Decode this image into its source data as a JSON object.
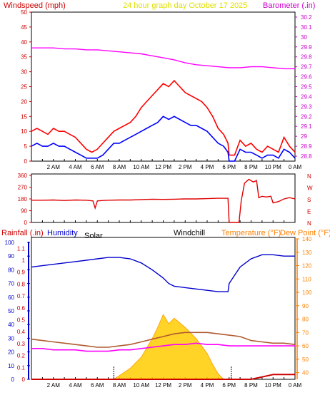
{
  "title": "24 hour graph day   October 17 2025",
  "x_ticks": [
    "2 AM",
    "4 AM",
    "6 AM",
    "8 AM",
    "10 AM",
    "12 PM",
    "2 PM",
    "4 PM",
    "6 PM",
    "8 PM",
    "10 PM",
    "0 AM"
  ],
  "colors": {
    "windspeed": "#ff0000",
    "wind_avg": "#0000ff",
    "barometer": "#ff00ff",
    "wind_dir": "#e00000",
    "humidity": "#0000cc",
    "temperature": "#b05a30",
    "dewpoint": "#ff00ff",
    "solar": "#ffcc00",
    "rain": "#cc0000",
    "title": "#e0e000",
    "left_axis": "#cc0000",
    "right_axis": "#cc00cc",
    "temp_axis": "#ff8000"
  },
  "chart_data": [
    {
      "type": "line",
      "labels": {
        "left": "Windspeed (mph)",
        "right": "Barometer (.in)"
      },
      "left_ticks": [
        "0",
        "5",
        "10",
        "15",
        "20",
        "25",
        "30",
        "35",
        "40",
        "45",
        "50"
      ],
      "right_ticks": [
        "28.8",
        "28.9",
        "29",
        "29.1",
        "29.2",
        "29.3",
        "29.4",
        "29.5",
        "29.6",
        "29.7",
        "29.8",
        "29.9",
        "30",
        "30.1",
        "30.2"
      ],
      "ylim": [
        0,
        50
      ],
      "y2lim": [
        28.75,
        30.25
      ],
      "series": [
        {
          "key": "gust",
          "axis": "left",
          "x": [
            0,
            0.5,
            1,
            1.5,
            2,
            2.5,
            3,
            3.5,
            4,
            4.5,
            5,
            5.5,
            6,
            6.5,
            7,
            7.5,
            8,
            8.5,
            9,
            9.5,
            10,
            10.5,
            11,
            11.5,
            12,
            12.5,
            13,
            13.5,
            14,
            14.5,
            15,
            15.5,
            16,
            16.5,
            17,
            17.5,
            17.9,
            18,
            18.5,
            19,
            19.5,
            20,
            20.5,
            21,
            21.5,
            22,
            22.5,
            23,
            23.5,
            24
          ],
          "y": [
            10,
            11,
            10,
            9,
            11,
            10,
            10,
            9,
            8,
            6,
            4,
            3,
            4,
            6,
            8,
            10,
            11,
            12,
            13,
            15,
            18,
            20,
            22,
            24,
            26,
            25,
            27,
            25,
            23,
            22,
            21,
            20,
            18,
            15,
            11,
            9,
            6,
            2,
            2,
            7,
            5,
            6,
            4,
            3,
            5,
            4,
            3,
            8,
            5,
            3
          ]
        },
        {
          "key": "avg",
          "axis": "left",
          "x": [
            0,
            0.5,
            1,
            1.5,
            2,
            2.5,
            3,
            3.5,
            4,
            4.5,
            5,
            5.5,
            6,
            6.5,
            7,
            7.5,
            8,
            8.5,
            9,
            9.5,
            10,
            10.5,
            11,
            11.5,
            12,
            12.5,
            13,
            13.5,
            14,
            14.5,
            15,
            15.5,
            16,
            16.5,
            17,
            17.5,
            17.9,
            18,
            18.5,
            19,
            19.5,
            20,
            20.5,
            21,
            21.5,
            22,
            22.5,
            23,
            23.5,
            24
          ],
          "y": [
            5,
            6,
            5,
            5,
            6,
            5,
            5,
            4,
            3,
            2,
            1,
            1,
            1,
            2,
            4,
            6,
            6,
            7,
            8,
            9,
            10,
            11,
            12,
            13,
            15,
            14,
            15,
            14,
            13,
            12,
            12,
            11,
            10,
            8,
            6,
            5,
            3,
            0,
            0,
            4,
            3,
            3,
            2,
            1,
            2,
            2,
            1,
            4,
            3,
            1
          ]
        },
        {
          "key": "barometer",
          "axis": "right",
          "x": [
            0,
            1,
            2,
            3,
            4,
            5,
            6,
            7,
            8,
            9,
            10,
            11,
            12,
            13,
            14,
            15,
            16,
            17,
            18,
            19,
            20,
            21,
            22,
            23,
            24
          ],
          "y": [
            29.89,
            29.89,
            29.89,
            29.88,
            29.88,
            29.87,
            29.87,
            29.86,
            29.85,
            29.84,
            29.83,
            29.81,
            29.79,
            29.77,
            29.74,
            29.72,
            29.71,
            29.7,
            29.69,
            29.69,
            29.7,
            29.7,
            29.69,
            29.68,
            29.68
          ]
        }
      ]
    },
    {
      "type": "line",
      "labels": {
        "right": [
          "N",
          "W",
          "S",
          "E",
          "N"
        ]
      },
      "left_ticks": [
        "0",
        "90",
        "180",
        "270",
        "360"
      ],
      "ylim": [
        0,
        360
      ],
      "series": [
        {
          "key": "direction",
          "x": [
            0,
            1,
            2,
            3,
            4,
            5,
            5.6,
            5.8,
            6,
            6.5,
            7,
            8,
            9,
            10,
            11,
            12,
            13,
            14,
            15,
            16,
            17,
            17.9,
            18,
            18.2,
            18.9,
            19.1,
            19.4,
            19.8,
            20.2,
            20.5,
            20.7,
            21,
            21.4,
            21.8,
            22,
            22.5,
            23,
            23.5,
            24
          ],
          "y": [
            170,
            170,
            172,
            168,
            172,
            170,
            165,
            110,
            165,
            168,
            170,
            172,
            172,
            175,
            178,
            176,
            178,
            180,
            180,
            182,
            185,
            185,
            0,
            0,
            0,
            165,
            300,
            330,
            310,
            320,
            190,
            200,
            195,
            200,
            150,
            160,
            180,
            190,
            180
          ]
        }
      ]
    },
    {
      "type": "line",
      "labels": {
        "rain": "Rainfall (.in)",
        "humidity": "Humidity",
        "solar": "Solar",
        "windchill": "Windchill",
        "temperature": "Temperature (°F)",
        "dewpoint": "Dew Point (°F)"
      },
      "rain_ticks": [
        "0",
        "0.1",
        "0.2",
        "0.3",
        "0.4",
        "0.5",
        "0.6",
        "0.7",
        "0.8",
        "0.9",
        "1",
        "1.1"
      ],
      "humidity_ticks": [
        "0",
        "10",
        "20",
        "30",
        "40",
        "50",
        "60",
        "70",
        "80",
        "90",
        "100"
      ],
      "temp_ticks": [
        "40",
        "50",
        "60",
        "70",
        "80",
        "90",
        "100",
        "110",
        "120",
        "130",
        "140"
      ],
      "ylim_humidity": [
        0,
        100
      ],
      "ylim_temp": [
        35,
        140
      ],
      "ylim_rain": [
        0,
        1.15
      ],
      "series": [
        {
          "key": "humidity",
          "x": [
            0,
            1,
            2,
            3,
            4,
            5,
            6,
            7,
            8,
            9,
            10,
            11,
            12,
            12.5,
            13,
            14,
            15,
            16,
            17,
            17.9,
            18,
            18.5,
            19,
            20,
            21,
            22,
            23,
            24
          ],
          "y": [
            82,
            83,
            84,
            85,
            86,
            87,
            88,
            89,
            89,
            88,
            85,
            80,
            74,
            70,
            68,
            67,
            66,
            65,
            64,
            64,
            70,
            76,
            82,
            88,
            91,
            91,
            90,
            90
          ]
        },
        {
          "key": "temperature",
          "x": [
            0,
            1,
            2,
            3,
            4,
            5,
            6,
            7,
            8,
            9,
            10,
            11,
            12,
            13,
            14,
            15,
            16,
            17,
            18,
            19,
            20,
            21,
            22,
            23,
            24
          ],
          "y": [
            65,
            64,
            63,
            62,
            61,
            60,
            59,
            59,
            60,
            61,
            63,
            65,
            67,
            69,
            70,
            70,
            70,
            69,
            68,
            67,
            64,
            63,
            62,
            62,
            61
          ]
        },
        {
          "key": "dewpoint",
          "x": [
            0,
            1,
            2,
            3,
            4,
            5,
            6,
            7,
            8,
            9,
            10,
            11,
            12,
            13,
            14,
            15,
            16,
            17,
            18,
            19,
            20,
            21,
            22,
            23,
            24
          ],
          "y": [
            58,
            58,
            57,
            57,
            57,
            56,
            56,
            56,
            57,
            57,
            58,
            59,
            60,
            61,
            61,
            62,
            61,
            61,
            60,
            60,
            60,
            60,
            60,
            60,
            60
          ]
        },
        {
          "key": "solar",
          "x": [
            7.5,
            8,
            9,
            10,
            11,
            11.5,
            12,
            12.5,
            13,
            14,
            15,
            16,
            16.5,
            17,
            17.5
          ],
          "y": [
            0,
            2,
            6,
            12,
            22,
            28,
            35,
            30,
            33,
            28,
            22,
            14,
            8,
            3,
            0
          ]
        },
        {
          "key": "rain",
          "x": [
            0,
            18,
            20,
            21,
            22,
            23,
            24
          ],
          "y": [
            0,
            0,
            0,
            0.02,
            0.04,
            0.04,
            0.04
          ]
        }
      ]
    }
  ]
}
